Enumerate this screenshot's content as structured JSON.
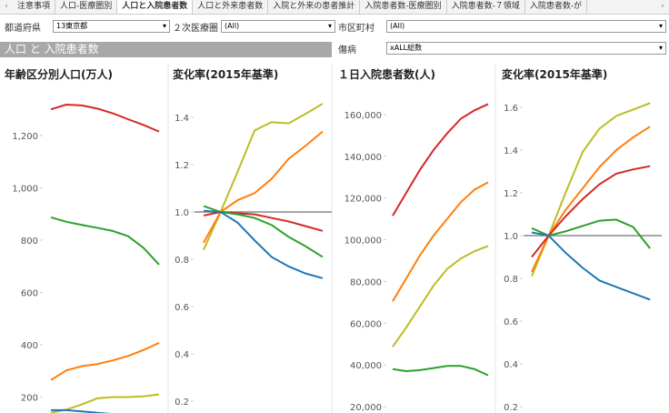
{
  "tabs": [
    "注意事項",
    "人口-医療圏別",
    "人口と入院患者数",
    "人口と外来患者数",
    "入院と外来の患者推計",
    "入院患者数-医療圏別",
    "入院患者数-７領域",
    "入院患者数-が"
  ],
  "active_tab": 2,
  "filters": [
    {
      "label": "都道府県",
      "value": "13東京都"
    },
    {
      "label": "２次医療圏",
      "value": "(All)"
    },
    {
      "label": "市区町村",
      "value": "(All)"
    },
    {
      "label": "傷病",
      "value": "xALL総数"
    }
  ],
  "section_title": "人口 と 入院患者数",
  "chart_data": [
    {
      "type": "line",
      "title": "年齢区分別人口(万人)",
      "ylim": [
        139,
        1412
      ],
      "yticks": [
        200,
        400,
        600,
        800,
        {
          "value": 1000,
          "label": "1,000"
        },
        {
          "value": 1200,
          "label": "1,200"
        }
      ],
      "series": [
        {
          "color": "#d62728",
          "values": [
            1300,
            1318,
            1315,
            1303,
            1285,
            1262,
            1240,
            1215
          ]
        },
        {
          "color": "#2ca02c",
          "values": [
            887,
            870,
            858,
            847,
            835,
            815,
            770,
            706
          ]
        },
        {
          "color": "#ff7f0e",
          "values": [
            265,
            302,
            318,
            326,
            340,
            357,
            380,
            407
          ]
        },
        {
          "color": "#bcbd22",
          "values": [
            140,
            152,
            172,
            195,
            200,
            200,
            203,
            210
          ]
        },
        {
          "color": "#1f77b4",
          "values": [
            150,
            150,
            145,
            140,
            135,
            130,
            125,
            120
          ]
        }
      ]
    },
    {
      "type": "line",
      "title": "変化率(2015年基準)",
      "ylim": [
        0.15,
        1.558
      ],
      "reference_line": {
        "value": 1,
        "color": "#888888"
      },
      "yticks": [
        0.2,
        0.4,
        0.6,
        0.8,
        {
          "value": 1,
          "label": "1.0"
        },
        1.2,
        1.4
      ],
      "series": [
        {
          "color": "#bcbd22",
          "values": [
            0.84,
            1,
            1.17,
            1.345,
            1.38,
            1.375,
            1.415,
            1.458
          ]
        },
        {
          "color": "#ff7f0e",
          "values": [
            0.87,
            1,
            1.05,
            1.08,
            1.14,
            1.225,
            1.28,
            1.34
          ]
        },
        {
          "color": "#d62728",
          "values": [
            0.985,
            1,
            0.995,
            0.99,
            0.975,
            0.96,
            0.94,
            0.92
          ]
        },
        {
          "color": "#2ca02c",
          "values": [
            1.025,
            1,
            0.99,
            0.975,
            0.945,
            0.895,
            0.855,
            0.81
          ]
        },
        {
          "color": "#1f77b4",
          "values": [
            1.005,
            1,
            0.955,
            0.88,
            0.81,
            0.77,
            0.74,
            0.72
          ]
        }
      ]
    },
    {
      "type": "line",
      "title": "１日入院患者数(人)",
      "ylim": [
        16957,
        176522
      ],
      "yticks": [
        {
          "value": 20000,
          "label": "20,000"
        },
        {
          "value": 40000,
          "label": "40,000"
        },
        {
          "value": 60000,
          "label": "60,000"
        },
        {
          "value": 80000,
          "label": "80,000"
        },
        {
          "value": 100000,
          "label": "100,000"
        },
        {
          "value": 120000,
          "label": "120,000"
        },
        {
          "value": 140000,
          "label": "140,000"
        },
        {
          "value": 160000,
          "label": "160,000"
        }
      ],
      "series": [
        {
          "color": "#d62728",
          "values": [
            111500,
            122500,
            133500,
            143000,
            151000,
            158000,
            162000,
            165000
          ]
        },
        {
          "color": "#ff7f0e",
          "values": [
            70500,
            81500,
            92500,
            102000,
            110000,
            118000,
            124000,
            127500
          ]
        },
        {
          "color": "#bcbd22",
          "values": [
            48700,
            58000,
            68000,
            78000,
            86000,
            91000,
            94500,
            97000
          ]
        },
        {
          "color": "#2ca02c",
          "values": [
            38000,
            37000,
            37500,
            38500,
            39500,
            39500,
            38000,
            35000
          ]
        }
      ]
    },
    {
      "type": "line",
      "title": "変化率(2015年基準)",
      "ylim": [
        0.17,
        1.728
      ],
      "reference_line": {
        "value": 1,
        "color": "#888888"
      },
      "yticks": [
        0.2,
        0.4,
        0.6,
        0.8,
        {
          "value": 1,
          "label": "1.0"
        },
        1.2,
        1.4,
        1.6
      ],
      "series": [
        {
          "color": "#bcbd22",
          "values": [
            0.81,
            1,
            1.2,
            1.39,
            1.5,
            1.56,
            1.59,
            1.62
          ]
        },
        {
          "color": "#ff7f0e",
          "values": [
            0.83,
            1,
            1.12,
            1.22,
            1.32,
            1.4,
            1.46,
            1.51
          ]
        },
        {
          "color": "#d62728",
          "values": [
            0.9,
            1,
            1.09,
            1.17,
            1.24,
            1.29,
            1.31,
            1.325
          ]
        },
        {
          "color": "#2ca02c",
          "values": [
            1.035,
            1,
            1.02,
            1.045,
            1.07,
            1.075,
            1.04,
            0.94
          ]
        },
        {
          "color": "#1f77b4",
          "values": [
            1.015,
            1,
            0.92,
            0.85,
            0.79,
            0.76,
            0.73,
            0.7
          ]
        }
      ]
    }
  ]
}
